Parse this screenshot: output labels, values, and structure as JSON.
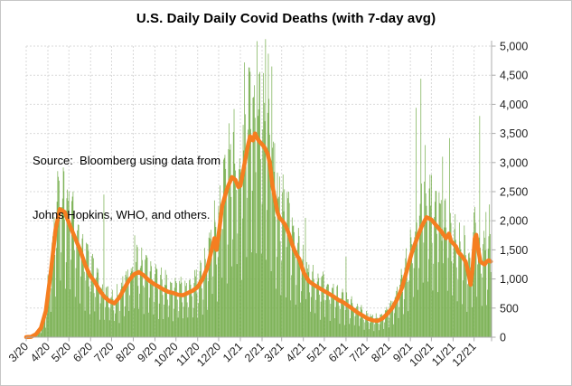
{
  "annotation": {
    "line1": "Source:  Bloomberg using data from",
    "line2": "Johns Hopkins, WHO, and others."
  },
  "chart_data": {
    "type": "bar",
    "title": "U.S. Daily Daily Covid Deaths (with 7-day avg)",
    "legend": "none",
    "grid": "both-dashed",
    "y_axis": {
      "side": "right",
      "min": 0,
      "max": 5000,
      "step": 500,
      "tick_labels": [
        "0",
        "500",
        "1,000",
        "1,500",
        "2,000",
        "2,500",
        "3,000",
        "3,500",
        "4,000",
        "4,500",
        "5,000"
      ]
    },
    "x_axis": {
      "tick_labels": [
        "3/20",
        "4/20",
        "5/20",
        "6/20",
        "7/20",
        "8/20",
        "9/20",
        "10/20",
        "11/20",
        "12/20",
        "1/21",
        "2/21",
        "3/21",
        "4/21",
        "5/21",
        "6/21",
        "7/21",
        "8/21",
        "9/21",
        "10/21",
        "11/21",
        "12/21"
      ],
      "month_start_days": [
        0,
        31,
        61,
        92,
        122,
        153,
        184,
        214,
        245,
        275,
        306,
        337,
        365,
        396,
        426,
        457,
        487,
        518,
        549,
        579,
        610,
        640
      ],
      "total_days": 665
    },
    "series": [
      {
        "name": "Daily deaths",
        "type": "bar",
        "color": "#74AD4B",
        "synthesis": {
          "note": "daily bars oscillate around 7-day avg with weekday reporting pattern",
          "weekday_factors": [
            0.42,
            0.72,
            1.18,
            1.28,
            1.26,
            1.22,
            0.92
          ],
          "jitter_min": 0.85,
          "jitter_span": 0.3
        },
        "outlier_spikes": [
          [
            111,
            2450
          ],
          [
            155,
            1750
          ],
          [
            312,
            4720
          ],
          [
            330,
            5085
          ],
          [
            342,
            5120
          ],
          [
            346,
            4870
          ],
          [
            351,
            4650
          ],
          [
            399,
            2050
          ],
          [
            457,
            1380
          ],
          [
            557,
            3940
          ],
          [
            564,
            4440
          ],
          [
            570,
            3300
          ],
          [
            595,
            3100
          ],
          [
            605,
            3420
          ],
          [
            648,
            3800
          ],
          [
            657,
            2150
          ],
          [
            662,
            2280
          ]
        ]
      },
      {
        "name": "7-day avg",
        "type": "line",
        "color": "#F57E20",
        "width": 4.5,
        "points": [
          [
            0,
            2
          ],
          [
            7,
            6
          ],
          [
            14,
            50
          ],
          [
            21,
            160
          ],
          [
            28,
            450
          ],
          [
            35,
            1100
          ],
          [
            42,
            1850
          ],
          [
            48,
            2200
          ],
          [
            55,
            2150
          ],
          [
            63,
            1900
          ],
          [
            70,
            1700
          ],
          [
            77,
            1500
          ],
          [
            84,
            1250
          ],
          [
            91,
            1060
          ],
          [
            98,
            950
          ],
          [
            105,
            800
          ],
          [
            112,
            690
          ],
          [
            119,
            620
          ],
          [
            126,
            580
          ],
          [
            133,
            680
          ],
          [
            140,
            830
          ],
          [
            147,
            980
          ],
          [
            154,
            1080
          ],
          [
            161,
            1120
          ],
          [
            168,
            1060
          ],
          [
            175,
            980
          ],
          [
            182,
            920
          ],
          [
            189,
            870
          ],
          [
            196,
            820
          ],
          [
            203,
            780
          ],
          [
            210,
            760
          ],
          [
            217,
            730
          ],
          [
            224,
            720
          ],
          [
            231,
            760
          ],
          [
            238,
            800
          ],
          [
            245,
            860
          ],
          [
            252,
            1000
          ],
          [
            259,
            1200
          ],
          [
            266,
            1550
          ],
          [
            269,
            1700
          ],
          [
            272,
            1500
          ],
          [
            276,
            1850
          ],
          [
            280,
            2250
          ],
          [
            287,
            2550
          ],
          [
            294,
            2750
          ],
          [
            299,
            2700
          ],
          [
            303,
            2580
          ],
          [
            306,
            2600
          ],
          [
            310,
            2850
          ],
          [
            313,
            3050
          ],
          [
            317,
            3300
          ],
          [
            320,
            3450
          ],
          [
            324,
            3380
          ],
          [
            327,
            3500
          ],
          [
            331,
            3400
          ],
          [
            334,
            3350
          ],
          [
            338,
            3300
          ],
          [
            341,
            3250
          ],
          [
            345,
            3150
          ],
          [
            348,
            3000
          ],
          [
            352,
            2600
          ],
          [
            355,
            2400
          ],
          [
            359,
            2150
          ],
          [
            362,
            2050
          ],
          [
            366,
            2000
          ],
          [
            369,
            1950
          ],
          [
            373,
            1850
          ],
          [
            376,
            1750
          ],
          [
            380,
            1600
          ],
          [
            383,
            1500
          ],
          [
            387,
            1400
          ],
          [
            390,
            1350
          ],
          [
            394,
            1200
          ],
          [
            397,
            1100
          ],
          [
            404,
            960
          ],
          [
            411,
            900
          ],
          [
            418,
            850
          ],
          [
            425,
            800
          ],
          [
            432,
            750
          ],
          [
            439,
            700
          ],
          [
            446,
            640
          ],
          [
            453,
            600
          ],
          [
            460,
            540
          ],
          [
            467,
            480
          ],
          [
            474,
            420
          ],
          [
            481,
            370
          ],
          [
            488,
            320
          ],
          [
            495,
            290
          ],
          [
            502,
            280
          ],
          [
            509,
            320
          ],
          [
            516,
            400
          ],
          [
            523,
            500
          ],
          [
            530,
            650
          ],
          [
            537,
            850
          ],
          [
            544,
            1150
          ],
          [
            551,
            1450
          ],
          [
            558,
            1680
          ],
          [
            565,
            1900
          ],
          [
            572,
            2060
          ],
          [
            579,
            2020
          ],
          [
            586,
            1920
          ],
          [
            593,
            1820
          ],
          [
            597,
            1750
          ],
          [
            600,
            1700
          ],
          [
            604,
            1780
          ],
          [
            607,
            1650
          ],
          [
            611,
            1600
          ],
          [
            614,
            1560
          ],
          [
            618,
            1450
          ],
          [
            621,
            1420
          ],
          [
            625,
            1350
          ],
          [
            628,
            1300
          ],
          [
            632,
            1100
          ],
          [
            635,
            900
          ],
          [
            638,
            1200
          ],
          [
            641,
            1700
          ],
          [
            643,
            1760
          ],
          [
            646,
            1500
          ],
          [
            649,
            1300
          ],
          [
            652,
            1270
          ],
          [
            655,
            1250
          ],
          [
            658,
            1300
          ],
          [
            661,
            1320
          ],
          [
            664,
            1300
          ]
        ]
      }
    ],
    "colors": {
      "bar": "#74AD4B",
      "line": "#F57E20",
      "gridline": "#D9D9D9",
      "axis": "#ACACAC",
      "text": "#1f1f1f"
    }
  }
}
